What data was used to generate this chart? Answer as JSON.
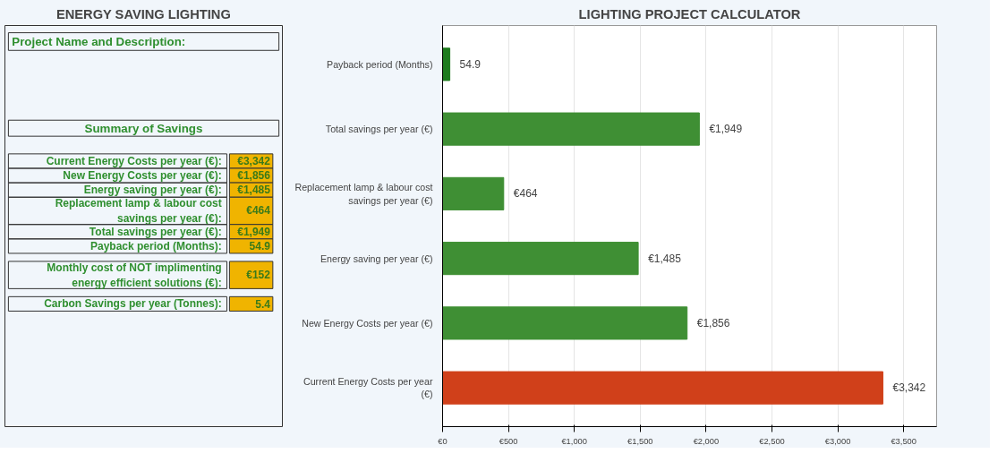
{
  "chart_data": [
    {
      "type": "other",
      "title": "ENERGY SAVING LIGHTING",
      "annotations": [
        "Project Name and Description:",
        "Summary of Savings",
        "Current Energy Costs per year (€):",
        "€3,342",
        "New Energy Costs per year (€):",
        "€1,856",
        "Energy saving per year (€):",
        "€1,485",
        "Replacement lamp & labour cost savings per year (€):",
        "€464",
        "Total savings per year (€):",
        "€1,949",
        "Payback period (Months):",
        "54.9",
        "Monthly cost of NOT implimenting energy efficient solutions (€):",
        "€152",
        "Carbon Savings per year (Tonnes):",
        "5.4"
      ]
    },
    {
      "type": "bar",
      "orientation": "horizontal",
      "title": "LIGHTING PROJECT CALCULATOR",
      "categories": [
        "Payback period (Months)",
        "Total savings per year (€)",
        "Replacement lamp & labour cost savings per year (€)",
        "Energy saving per year (€)",
        "New Energy Costs per year (€)",
        "Current Energy Costs per year (€)"
      ],
      "values": [
        54.9,
        1949,
        464,
        1485,
        1856,
        3342
      ],
      "colors": [
        "#1e7b1e",
        "#3f8f34",
        "#3f8f34",
        "#3f8f34",
        "#3f8f34",
        "#d0401a"
      ],
      "value_labels": [
        "54.9",
        "€1,949",
        "€464",
        "€1,485",
        "€1,856",
        "€3,342"
      ],
      "xlim": [
        0,
        3750
      ],
      "xticks": [
        {
          "value": 0,
          "label": "€0"
        },
        {
          "value": 500,
          "label": "€500"
        },
        {
          "value": 1000,
          "label": "€1,000"
        },
        {
          "value": 1500,
          "label": "€1,500"
        },
        {
          "value": 2000,
          "label": "€2,000"
        },
        {
          "value": 2500,
          "label": "€2,500"
        },
        {
          "value": 3000,
          "label": "€3,000"
        },
        {
          "value": 3500,
          "label": "€3,500"
        }
      ],
      "grid": "x"
    }
  ]
}
